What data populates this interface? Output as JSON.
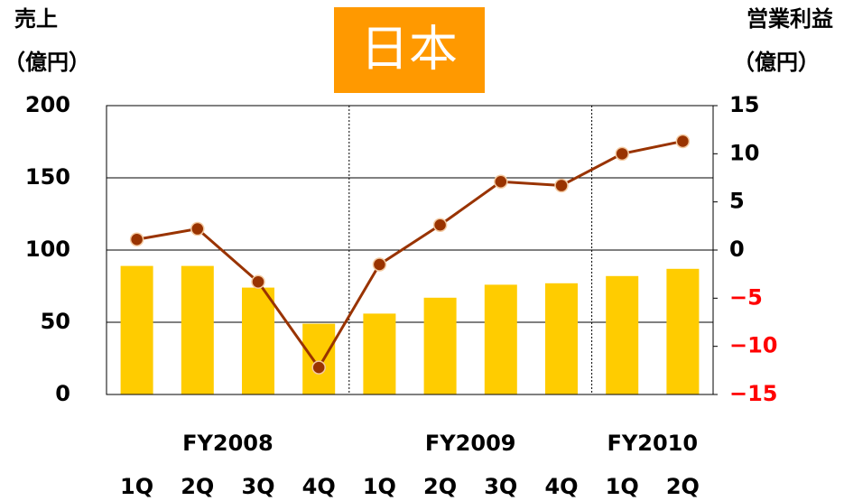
{
  "chart_data": {
    "type": "combo",
    "title": "日本",
    "ylabel": [
      "売上",
      "（億円）"
    ],
    "y2label": [
      "営業利益",
      "（億円）"
    ],
    "categories": [
      "1Q",
      "2Q",
      "3Q",
      "4Q",
      "1Q",
      "2Q",
      "3Q",
      "4Q",
      "1Q",
      "2Q"
    ],
    "category_groups": [
      "FY2008",
      null,
      null,
      null,
      "FY2009",
      null,
      null,
      null,
      "FY2010",
      null
    ],
    "series": [
      {
        "type": "bar",
        "color": "#ffcc00",
        "values": [
          89,
          89,
          74,
          49,
          56,
          67,
          76,
          77,
          82,
          87
        ]
      },
      {
        "type": "line",
        "axis": "y2",
        "color": "#993300",
        "values": [
          1.1,
          2.2,
          -3.3,
          -12.2,
          -1.5,
          2.6,
          7.1,
          6.7,
          10,
          11.3
        ]
      }
    ],
    "ylim": [
      0,
      200
    ],
    "yticks": [
      0,
      50,
      100,
      150,
      200
    ],
    "y2lim": [
      -15,
      15
    ],
    "y2ticks": [
      15,
      10,
      5,
      0,
      {
        "value": -5,
        "label": "−5"
      },
      {
        "value": -10,
        "label": "−10"
      },
      {
        "value": -15,
        "label": "−15"
      }
    ],
    "y2_negative_tick_color": "#ff0000",
    "title_background": "#ff9900",
    "grid": true
  }
}
